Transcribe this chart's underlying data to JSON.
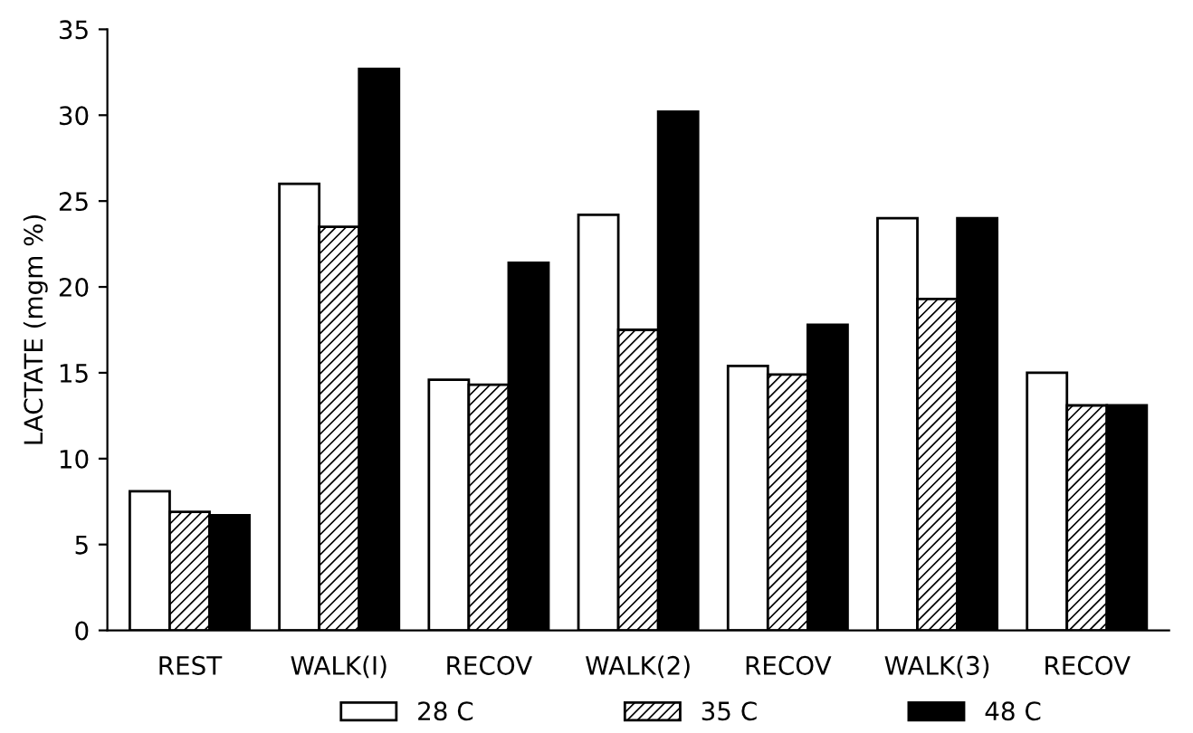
{
  "chart_data": {
    "type": "bar",
    "ylabel": "LACTATE (mgm %)",
    "categories": [
      "REST",
      "WALK(I)",
      "RECOV",
      "WALK(2)",
      "RECOV",
      "WALK(3)",
      "RECOV"
    ],
    "series": [
      {
        "name": "28 C",
        "color": "#ffffff",
        "values": [
          8.1,
          26.0,
          14.6,
          24.2,
          15.4,
          24.0,
          15.0
        ]
      },
      {
        "name": "35 C",
        "color": "#000000",
        "values": [
          6.9,
          23.5,
          14.3,
          17.5,
          14.9,
          19.3,
          13.1
        ]
      },
      {
        "name": "48 C",
        "color": "#000000",
        "values": [
          6.7,
          32.7,
          21.4,
          30.2,
          17.8,
          24.0,
          13.1
        ]
      }
    ],
    "ylim": [
      0,
      35
    ],
    "yticks": [
      0,
      5,
      10,
      15,
      20,
      25,
      30,
      35
    ],
    "grid": false,
    "legend": "bottom"
  }
}
